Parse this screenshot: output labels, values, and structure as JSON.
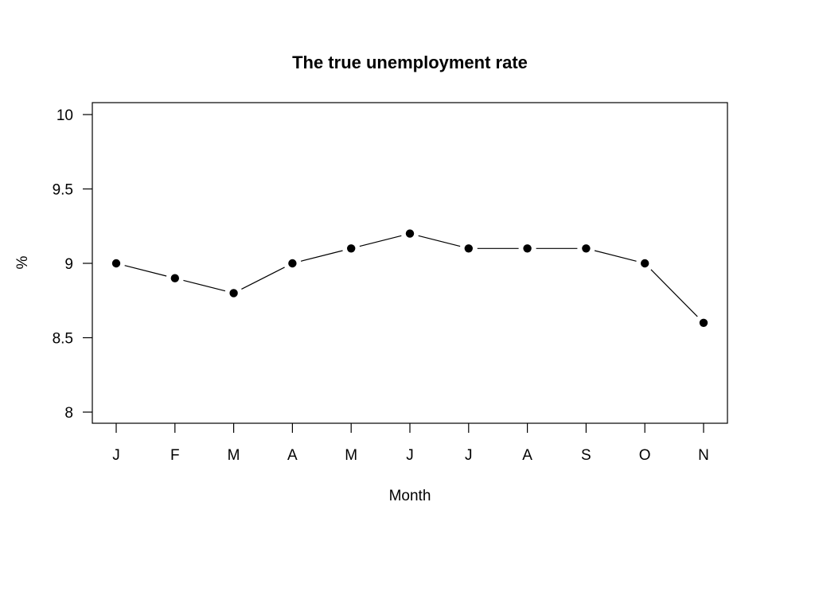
{
  "chart_data": {
    "type": "line",
    "title": "The true unemployment rate",
    "xlabel": "Month",
    "ylabel": "%",
    "categories": [
      "J",
      "F",
      "M",
      "A",
      "M",
      "J",
      "J",
      "A",
      "S",
      "O",
      "N"
    ],
    "series": [
      {
        "values": [
          9.0,
          8.9,
          8.8,
          9.0,
          9.1,
          9.2,
          9.1,
          9.1,
          9.1,
          9.0,
          8.6
        ]
      }
    ],
    "ylim": [
      8,
      10
    ],
    "yticks": [
      8,
      8.5,
      9,
      9.5,
      10
    ],
    "ytick_labels": [
      "8",
      "8.5",
      "9",
      "9.5",
      "10"
    ],
    "grid": false,
    "legend": "none",
    "marker": "filled-circle",
    "line_color": "#000000",
    "marker_color": "#000000"
  }
}
